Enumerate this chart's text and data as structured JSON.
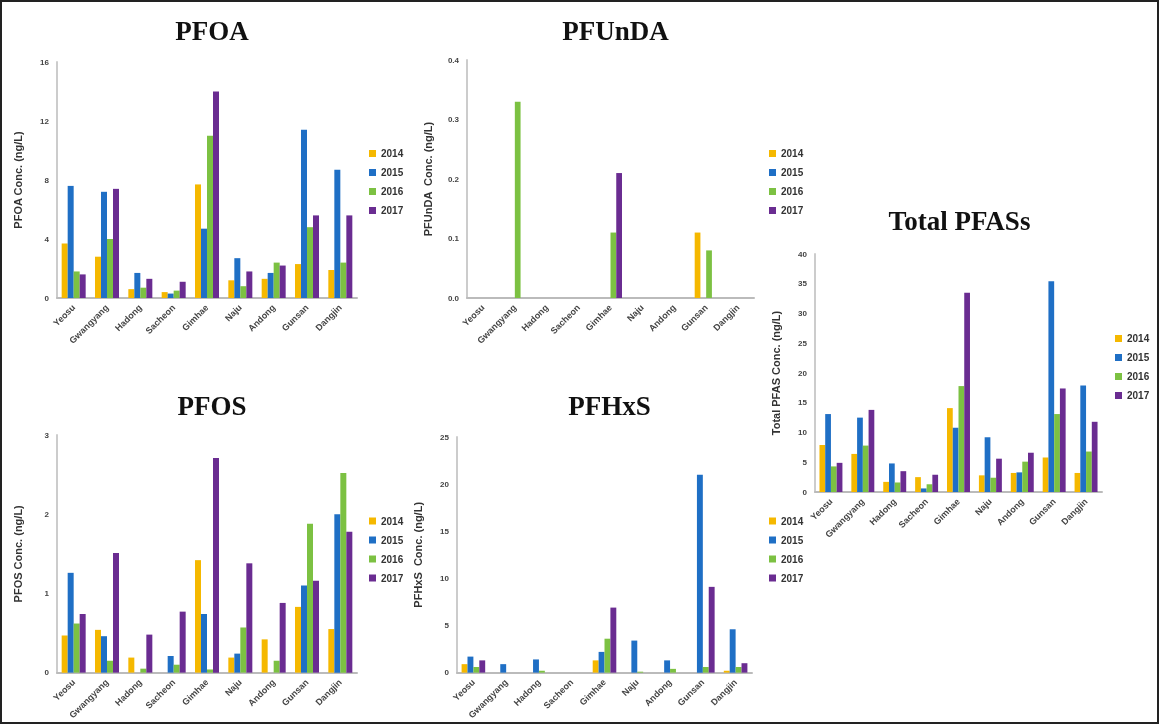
{
  "chart_data": [
    {
      "type": "bar",
      "title": "PFOA",
      "ylabel": "PFOA Conc. (ng/L)",
      "categories": [
        "Yeosu",
        "Gwangyang",
        "Hadong",
        "Sacheon",
        "Gimhae",
        "Naju",
        "Andong",
        "Gunsan",
        "Dangjin"
      ],
      "ylim": [
        0,
        16
      ],
      "yticks": [
        0,
        4,
        8,
        12,
        16
      ],
      "grid": false,
      "legend": "right",
      "series": [
        {
          "name": "2014",
          "color": "#f5b800",
          "values": [
            3.7,
            2.8,
            0.6,
            0.4,
            7.7,
            1.2,
            1.3,
            2.3,
            1.9
          ]
        },
        {
          "name": "2015",
          "color": "#1f6fc5",
          "values": [
            7.6,
            7.2,
            1.7,
            0.3,
            4.7,
            2.7,
            1.7,
            11.4,
            8.7
          ]
        },
        {
          "name": "2016",
          "color": "#7cc142",
          "values": [
            1.8,
            4.0,
            0.7,
            0.5,
            11.0,
            0.8,
            2.4,
            4.8,
            2.4
          ]
        },
        {
          "name": "2017",
          "color": "#6a2c91",
          "values": [
            1.6,
            7.4,
            1.3,
            1.1,
            14.0,
            1.8,
            2.2,
            5.6,
            5.6
          ]
        }
      ]
    },
    {
      "type": "bar",
      "title": "PFUnDA",
      "ylabel": "PFUnDA  Conc. (ng/L)",
      "categories": [
        "Yeosu",
        "Gwangyang",
        "Hadong",
        "Sacheon",
        "Gimhae",
        "Naju",
        "Andong",
        "Gunsan",
        "Dangjin"
      ],
      "ylim": [
        0,
        0.4
      ],
      "yticks": [
        {
          "value": 0,
          "label": "0.0"
        },
        {
          "value": 0.1,
          "label": "0.1"
        },
        {
          "value": 0.2,
          "label": "0.2"
        },
        {
          "value": 0.3,
          "label": "0.3"
        },
        {
          "value": 0.4,
          "label": "0.4"
        }
      ],
      "grid": false,
      "legend": "right",
      "series": [
        {
          "name": "2014",
          "color": "#f5b800",
          "values": [
            0,
            0,
            0,
            0,
            0,
            0,
            0,
            0.11,
            0
          ]
        },
        {
          "name": "2015",
          "color": "#1f6fc5",
          "values": [
            0,
            0,
            0,
            0,
            0,
            0,
            0,
            0,
            0
          ]
        },
        {
          "name": "2016",
          "color": "#7cc142",
          "values": [
            0,
            0.33,
            0,
            0,
            0.11,
            0,
            0,
            0.08,
            0
          ]
        },
        {
          "name": "2017",
          "color": "#6a2c91",
          "values": [
            0,
            0,
            0,
            0,
            0.21,
            0,
            0,
            0,
            0
          ]
        }
      ]
    },
    {
      "type": "bar",
      "title": "Total PFASs",
      "ylabel": "Total PFAS Conc. (ng/L)",
      "categories": [
        "Yeosu",
        "Gwangyang",
        "Hadong",
        "Sacheon",
        "Gimhae",
        "Naju",
        "Andong",
        "Gunsan",
        "Dangjin"
      ],
      "ylim": [
        0,
        40
      ],
      "yticks": [
        0,
        5,
        10,
        15,
        20,
        25,
        30,
        35,
        40
      ],
      "grid": false,
      "legend": "right",
      "series": [
        {
          "name": "2014",
          "color": "#f5b800",
          "values": [
            7.9,
            6.4,
            1.7,
            2.5,
            14.1,
            2.8,
            3.2,
            5.8,
            3.2
          ]
        },
        {
          "name": "2015",
          "color": "#1f6fc5",
          "values": [
            13.1,
            12.5,
            4.8,
            0.6,
            10.8,
            9.2,
            3.3,
            35.4,
            17.9
          ]
        },
        {
          "name": "2016",
          "color": "#7cc142",
          "values": [
            4.3,
            7.8,
            1.6,
            1.3,
            17.8,
            2.4,
            5.1,
            13.1,
            6.8
          ]
        },
        {
          "name": "2017",
          "color": "#6a2c91",
          "values": [
            4.9,
            13.8,
            3.5,
            2.9,
            33.5,
            5.6,
            6.6,
            17.4,
            11.8
          ]
        }
      ]
    },
    {
      "type": "bar",
      "title": "PFOS",
      "ylabel": "PFOS Conc. (ng/L)",
      "categories": [
        "Yeosu",
        "Gwangyang",
        "Hadong",
        "Sacheon",
        "Gimhae",
        "Naju",
        "Andong",
        "Gunsan",
        "Dangjin"
      ],
      "ylim": [
        0,
        3
      ],
      "yticks": [
        0,
        1,
        2,
        3
      ],
      "grid": false,
      "legend": "right",
      "series": [
        {
          "name": "2014",
          "color": "#f5b800",
          "values": [
            0.47,
            0.54,
            0.19,
            0,
            1.42,
            0.19,
            0.42,
            0.83,
            0.55
          ]
        },
        {
          "name": "2015",
          "color": "#1f6fc5",
          "values": [
            1.26,
            0.46,
            0,
            0.21,
            0.74,
            0.24,
            0,
            1.1,
            2.0
          ]
        },
        {
          "name": "2016",
          "color": "#7cc142",
          "values": [
            0.62,
            0.15,
            0.05,
            0.1,
            0.04,
            0.57,
            0.15,
            1.88,
            2.52
          ]
        },
        {
          "name": "2017",
          "color": "#6a2c91",
          "values": [
            0.74,
            1.51,
            0.48,
            0.77,
            2.71,
            1.38,
            0.88,
            1.16,
            1.78
          ]
        }
      ]
    },
    {
      "type": "bar",
      "title": "PFHxS",
      "ylabel": "PFHxS  Conc. (ng/L)",
      "categories": [
        "Yeosu",
        "Gwangyang",
        "Hadong",
        "Sacheon",
        "Gimhae",
        "Naju",
        "Andong",
        "Gunsan",
        "Dangjin"
      ],
      "ylim": [
        0,
        25
      ],
      "yticks": [
        0,
        5,
        10,
        15,
        20,
        25
      ],
      "grid": false,
      "legend": "right",
      "series": [
        {
          "name": "2014",
          "color": "#f5b800",
          "values": [
            0.9,
            0,
            0,
            0,
            1.3,
            0,
            0,
            0,
            0.2
          ]
        },
        {
          "name": "2015",
          "color": "#1f6fc5",
          "values": [
            1.7,
            0.9,
            1.4,
            0,
            2.2,
            3.4,
            1.3,
            21.0,
            4.6
          ]
        },
        {
          "name": "2016",
          "color": "#7cc142",
          "values": [
            0.6,
            0,
            0.2,
            0,
            3.6,
            0.1,
            0.4,
            0.6,
            0.6
          ]
        },
        {
          "name": "2017",
          "color": "#6a2c91",
          "values": [
            1.3,
            0,
            0,
            0,
            6.9,
            0,
            0,
            9.1,
            1.0
          ]
        }
      ]
    }
  ]
}
